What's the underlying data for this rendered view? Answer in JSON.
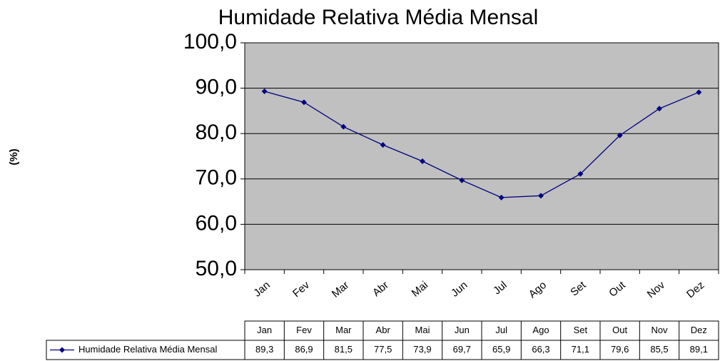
{
  "chart_data": {
    "type": "line",
    "title": "Humidade Relativa Média Mensal",
    "y_label": "(%)",
    "categories": [
      "Jan",
      "Fev",
      "Mar",
      "Abr",
      "Mai",
      "Jun",
      "Jul",
      "Ago",
      "Set",
      "Out",
      "Nov",
      "Dez"
    ],
    "series": [
      {
        "name": "Humidade Relativa Média Mensal",
        "color": "#000080",
        "values": [
          89.3,
          86.9,
          81.5,
          77.5,
          73.9,
          69.7,
          65.9,
          66.3,
          71.1,
          79.6,
          85.5,
          89.1
        ],
        "value_labels": [
          "89,3",
          "86,9",
          "81,5",
          "77,5",
          "73,9",
          "69,7",
          "65,9",
          "66,3",
          "71,1",
          "79,6",
          "85,5",
          "89,1"
        ]
      }
    ],
    "ylim": [
      50,
      100
    ],
    "yticks": [
      {
        "value": 50,
        "label": "50,0"
      },
      {
        "value": 60,
        "label": "60,0"
      },
      {
        "value": 70,
        "label": "70,0"
      },
      {
        "value": 80,
        "label": "80,0"
      },
      {
        "value": 90,
        "label": "90,0"
      },
      {
        "value": 100,
        "label": "100,0"
      }
    ],
    "grid": true,
    "plot_background": "#c0c0c0",
    "data_table": true
  }
}
